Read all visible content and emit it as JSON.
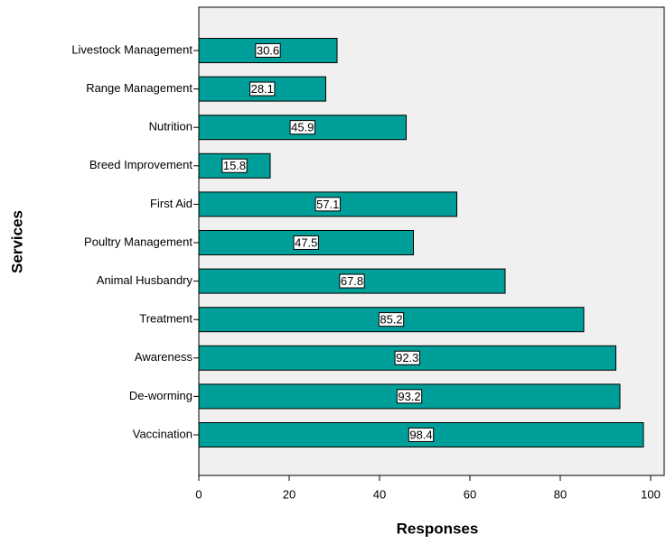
{
  "chart_data": {
    "type": "barh",
    "x_label": "Responses",
    "y_label": "Services",
    "categories": [
      "Livestock Management",
      "Range Management",
      "Nutrition",
      "Breed Improvement",
      "First Aid",
      "Poultry Management",
      "Animal Husbandry",
      "Treatment",
      "Awareness",
      "De-worming",
      "Vaccination"
    ],
    "values": [
      30.6,
      28.1,
      45.9,
      15.8,
      57.1,
      47.5,
      67.8,
      85.2,
      92.3,
      93.2,
      98.4
    ],
    "color": "#009e98",
    "background": "#f0f0f0",
    "xlim": [
      0,
      103
    ],
    "xticks": [
      0,
      20,
      40,
      60,
      80,
      100
    ]
  }
}
